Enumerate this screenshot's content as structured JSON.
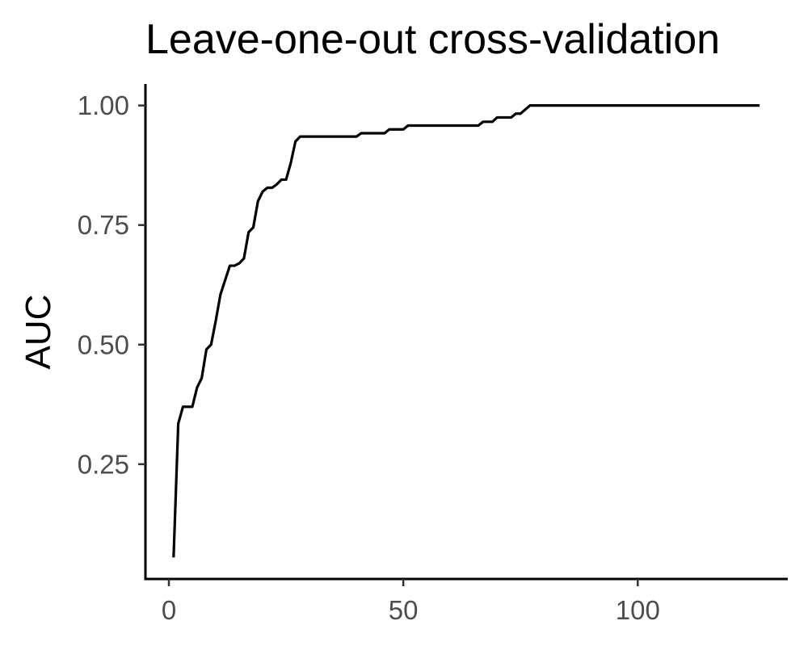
{
  "chart_data": {
    "type": "line",
    "title": "Leave-one-out cross-validation",
    "xlabel": "",
    "ylabel": "AUC",
    "xlim": [
      -5,
      132
    ],
    "ylim": [
      0.01,
      1.045
    ],
    "x_ticks": [
      0,
      50,
      100
    ],
    "x_tick_labels": [
      "0",
      "50",
      "100"
    ],
    "y_ticks": [
      0.25,
      0.5,
      0.75,
      1.0
    ],
    "y_tick_labels": [
      "0.25",
      "0.50",
      "0.75",
      "1.00"
    ],
    "grid": false,
    "legend": "none",
    "series": [
      {
        "color": "#000000",
        "points": [
          [
            1,
            0.055
          ],
          [
            2,
            0.335
          ],
          [
            3,
            0.37
          ],
          [
            4,
            0.37
          ],
          [
            5,
            0.37
          ],
          [
            6,
            0.41
          ],
          [
            7,
            0.43
          ],
          [
            8,
            0.49
          ],
          [
            9,
            0.5
          ],
          [
            10,
            0.55
          ],
          [
            11,
            0.605
          ],
          [
            12,
            0.635
          ],
          [
            13,
            0.665
          ],
          [
            14,
            0.665
          ],
          [
            15,
            0.67
          ],
          [
            16,
            0.68
          ],
          [
            17,
            0.735
          ],
          [
            18,
            0.745
          ],
          [
            19,
            0.8
          ],
          [
            20,
            0.82
          ],
          [
            21,
            0.828
          ],
          [
            22,
            0.828
          ],
          [
            23,
            0.835
          ],
          [
            24,
            0.845
          ],
          [
            25,
            0.845
          ],
          [
            26,
            0.88
          ],
          [
            27,
            0.925
          ],
          [
            28,
            0.935
          ],
          [
            30,
            0.935
          ],
          [
            35,
            0.935
          ],
          [
            40,
            0.935
          ],
          [
            41,
            0.942
          ],
          [
            46,
            0.942
          ],
          [
            47,
            0.95
          ],
          [
            50,
            0.95
          ],
          [
            51,
            0.958
          ],
          [
            60,
            0.958
          ],
          [
            66,
            0.958
          ],
          [
            67,
            0.966
          ],
          [
            69,
            0.966
          ],
          [
            70,
            0.975
          ],
          [
            73,
            0.975
          ],
          [
            74,
            0.983
          ],
          [
            75,
            0.983
          ],
          [
            77,
            1.0
          ],
          [
            90,
            1.0
          ],
          [
            110,
            1.0
          ],
          [
            126,
            1.0
          ]
        ]
      }
    ]
  }
}
